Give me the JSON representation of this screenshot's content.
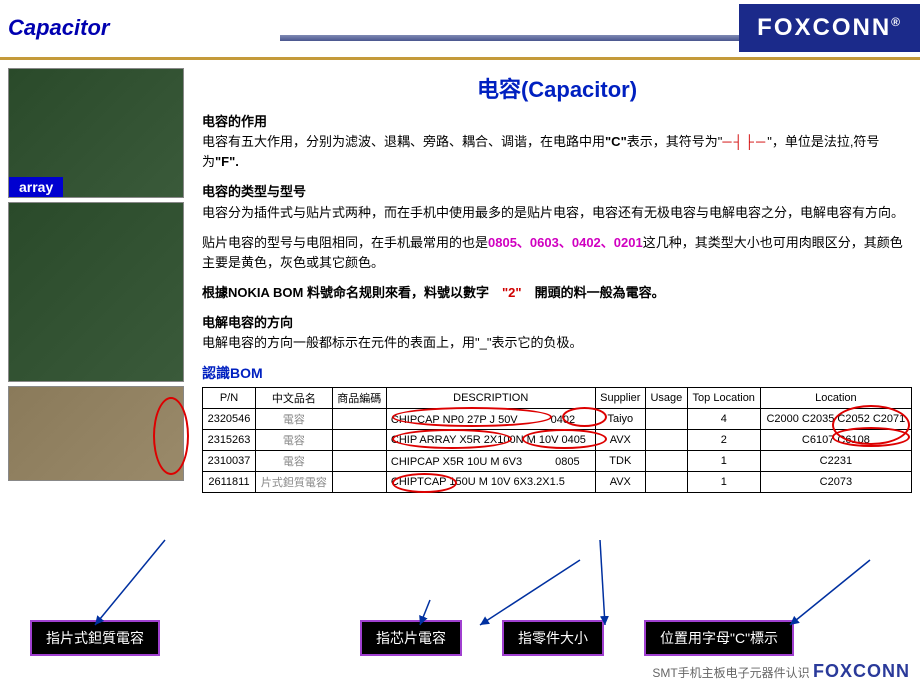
{
  "header": {
    "title": "Capacitor",
    "logo": "FOXCONN",
    "logo_r": "®"
  },
  "left": {
    "array_label": "array"
  },
  "content": {
    "big_title": "电容(Capacitor)",
    "p1_h": "电容的作用",
    "p1_a": "电容有五大作用，分别为滤波、退耦、旁路、耦合、调谐，在电路中用",
    "p1_c": "\"C\"",
    "p1_b": "表示，其符号为\"",
    "p1_sym": "─┤├─",
    "p1_d": "\"，单位是法拉,符号为",
    "p1_f": "\"F\".",
    "p2_h": "电容的类型与型号",
    "p2_a": "电容分为插件式与贴片式两种，而在手机中使用最多的是贴片电容，电容还有无极电容与电解电容之分，电解电容有方向。",
    "p3_a": "贴片电容的型号与电阻相同，在手机最常用的也是",
    "p3_sizes": "0805、0603、0402、0201",
    "p3_b": "这几种，其类型大小也可用肉眼区分，其颜色主要是黄色，灰色或其它颜色。",
    "p4_a": "根據NOKIA BOM 料號命名规則來看，料號以數字",
    "p4_2": "\"2\"",
    "p4_b": "開頭的料一般為電容。",
    "p5_h": "电解电容的方向",
    "p5_a": "电解电容的方向一般都标示在元件的表面上，用\"_\"表示它的负极。",
    "bom_h": "認識BOM"
  },
  "table": {
    "cols": [
      "P/N",
      "中文品名",
      "商品編碼",
      "DESCRIPTION",
      "Supplier",
      "Usage",
      "Top Location",
      "Location"
    ],
    "rows": [
      [
        "2320546",
        "電容",
        "",
        "CHIPCAP NP0 27P J 50V　　　0402",
        "Taiyo",
        "",
        "4",
        "C2000 C2035 C2052 C2071"
      ],
      [
        "2315263",
        "電容",
        "",
        "CHIP ARRAY X5R 2X100N M 10V 0405",
        "AVX",
        "",
        "2",
        "C6107 C6108"
      ],
      [
        "2310037",
        "電容",
        "",
        "CHIPCAP X5R 10U M 6V3　　　0805",
        "TDK",
        "",
        "1",
        "C2231"
      ],
      [
        "2611811",
        "片式鉭質電容",
        "",
        "CHIPTCAP 150U M 10V 6X3.2X1.5",
        "AVX",
        "",
        "1",
        "C2073"
      ]
    ]
  },
  "labels": {
    "l1": "指片式鉭質電容",
    "l2": "指芯片電容",
    "l3": "指零件大小",
    "l4": "位置用字母\"C\"標示"
  },
  "footer": {
    "text": "SMT手机主板电子元器件认识",
    "fx": "FOXCONN"
  }
}
